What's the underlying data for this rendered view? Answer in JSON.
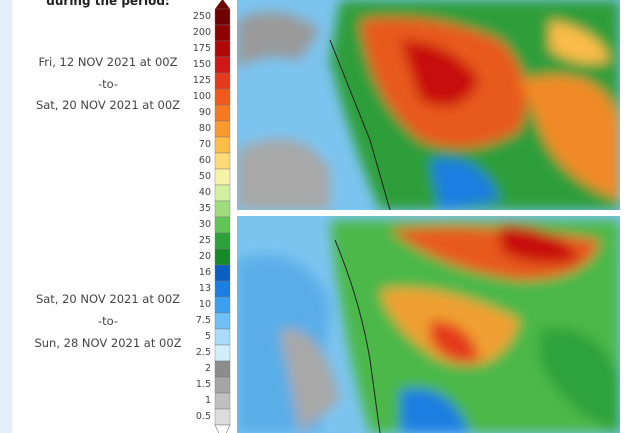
{
  "header": {
    "title": "during the period:"
  },
  "periods": [
    {
      "start": "Fri, 12 NOV 2021 at 00Z",
      "separator": "-to-",
      "end": "Sat, 20 NOV 2021 at 00Z"
    },
    {
      "start": "Sat, 20 NOV 2021 at 00Z",
      "separator": "-to-",
      "end": "Sun, 28 NOV 2021 at 00Z"
    }
  ],
  "legend": {
    "labels": [
      "250",
      "200",
      "175",
      "150",
      "125",
      "100",
      "90",
      "80",
      "70",
      "60",
      "50",
      "40",
      "35",
      "30",
      "25",
      "20",
      "16",
      "13",
      "10",
      "7.5",
      "5",
      "2.5",
      "2",
      "1.5",
      "1",
      "0.5"
    ],
    "colors": [
      "#6e0000",
      "#8c0000",
      "#b00808",
      "#d01818",
      "#e43a1e",
      "#f05a1e",
      "#f47a22",
      "#f89a30",
      "#fbbc48",
      "#fddc78",
      "#f6f2a8",
      "#d2f0a0",
      "#9fdc7c",
      "#62c455",
      "#2ea23a",
      "#168a2a",
      "#0c5ec0",
      "#1c7ee0",
      "#3ca0f0",
      "#70c0f8",
      "#a8dcfa",
      "#d0eefc",
      "#8c8c8c",
      "#a6a6a6",
      "#c0c0c0",
      "#dcdcdc"
    ]
  }
}
